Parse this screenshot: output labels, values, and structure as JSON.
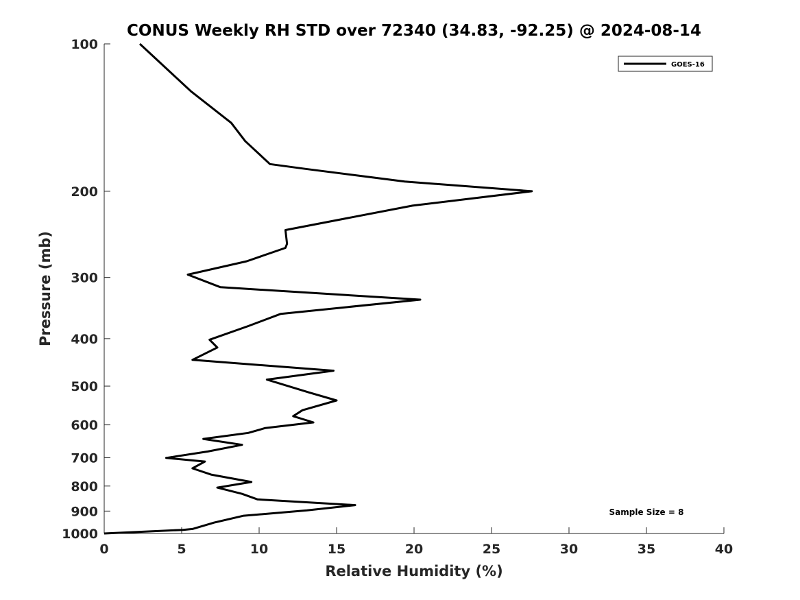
{
  "chart_data": {
    "type": "line",
    "title": "CONUS Weekly RH STD over 72340 (34.83, -92.25) @ 2024-08-14",
    "xlabel": "Relative Humidity (%)",
    "ylabel": "Pressure (mb)",
    "xlim": [
      0,
      40
    ],
    "ylim": [
      100,
      1000
    ],
    "y_scale": "log",
    "y_reversed": true,
    "grid": false,
    "x_ticks": [
      "0",
      "5",
      "10",
      "15",
      "20",
      "25",
      "30",
      "35",
      "40"
    ],
    "y_ticks": [
      "100",
      "200",
      "300",
      "400",
      "500",
      "600",
      "700",
      "800",
      "900",
      "1000"
    ],
    "legend": {
      "position": "top-right",
      "entries": [
        "GOES-16"
      ]
    },
    "annotation": "Sample Size = 8",
    "series": [
      {
        "name": "GOES-16",
        "color": "#000000",
        "x": [
          2.3,
          5.6,
          8.2,
          9.1,
          10.7,
          13.0,
          19.4,
          27.6,
          19.9,
          11.7,
          11.8,
          11.7,
          9.2,
          5.4,
          7.5,
          20.4,
          11.4,
          9.3,
          6.8,
          7.3,
          5.7,
          14.8,
          10.5,
          13.2,
          15.0,
          12.8,
          12.2,
          13.5,
          10.4,
          9.3,
          6.4,
          8.9,
          6.7,
          4.0,
          6.5,
          5.7,
          6.9,
          9.5,
          7.3,
          8.9,
          9.9,
          16.2,
          13.1,
          9.0,
          7.1,
          5.7,
          5.1,
          0.0
        ],
        "y": [
          100,
          125,
          145,
          158,
          176,
          180,
          191,
          200,
          214,
          240,
          256,
          261,
          278,
          296,
          314,
          333,
          356,
          377,
          402,
          417,
          442,
          465,
          485,
          515,
          535,
          560,
          576,
          593,
          609,
          623,
          641,
          659,
          680,
          701,
          713,
          736,
          758,
          785,
          806,
          830,
          852,
          875,
          897,
          920,
          950,
          979,
          983,
          1000
        ]
      }
    ]
  }
}
